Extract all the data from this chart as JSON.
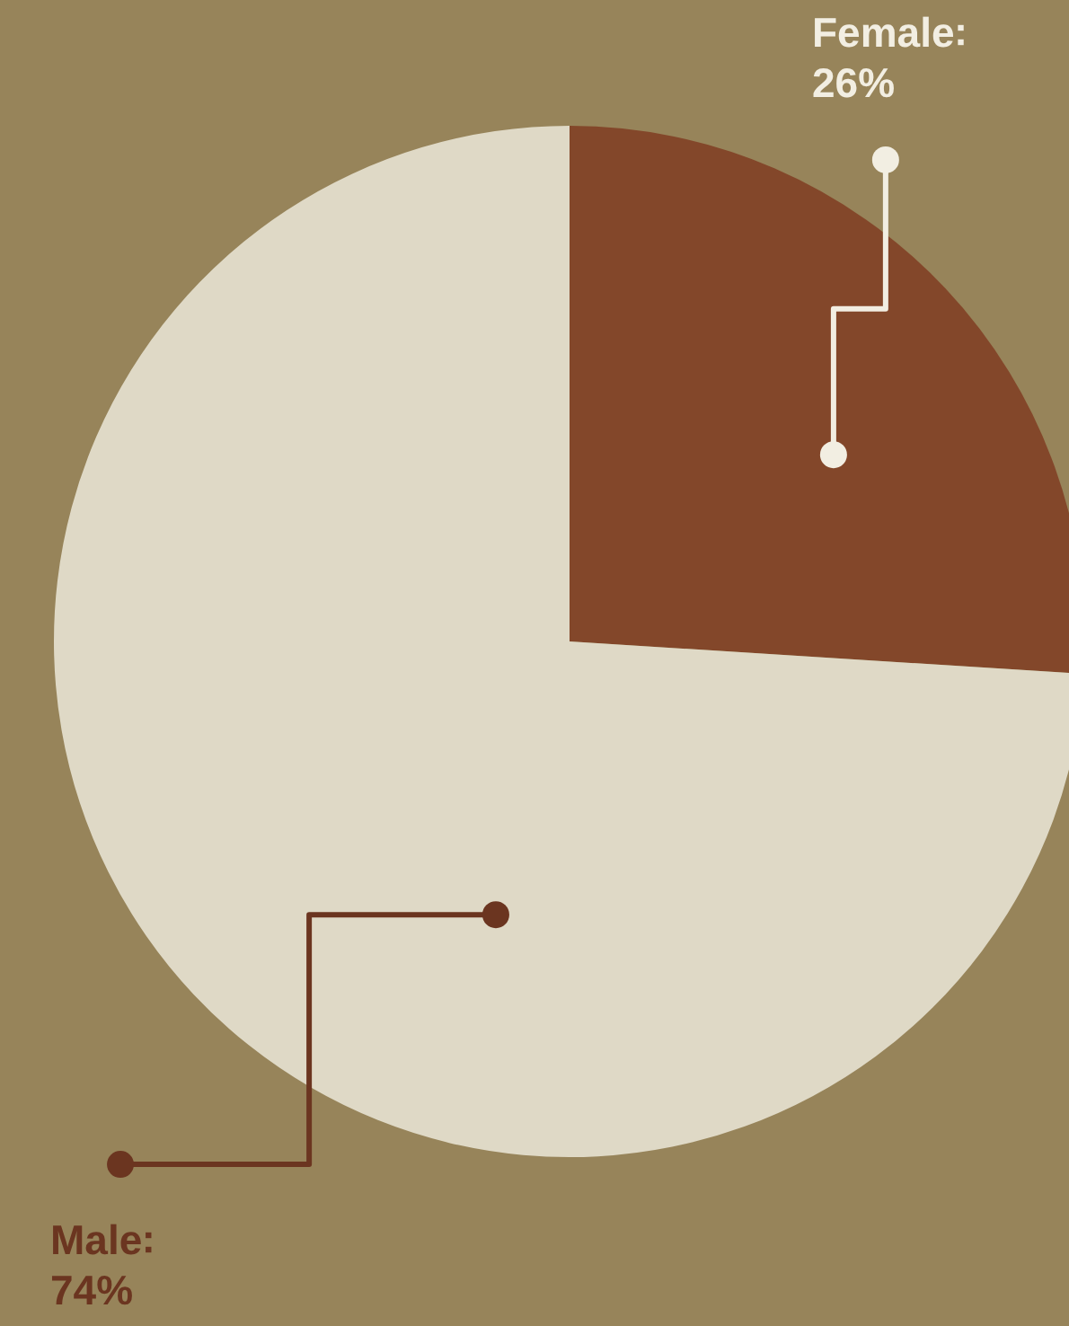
{
  "chart_data": {
    "type": "pie",
    "categories": [
      "Female",
      "Male"
    ],
    "values": [
      26,
      74
    ],
    "colors": [
      "#83472a",
      "#dfd9c6"
    ],
    "value_labels": [
      "26%",
      "74%"
    ]
  }
}
